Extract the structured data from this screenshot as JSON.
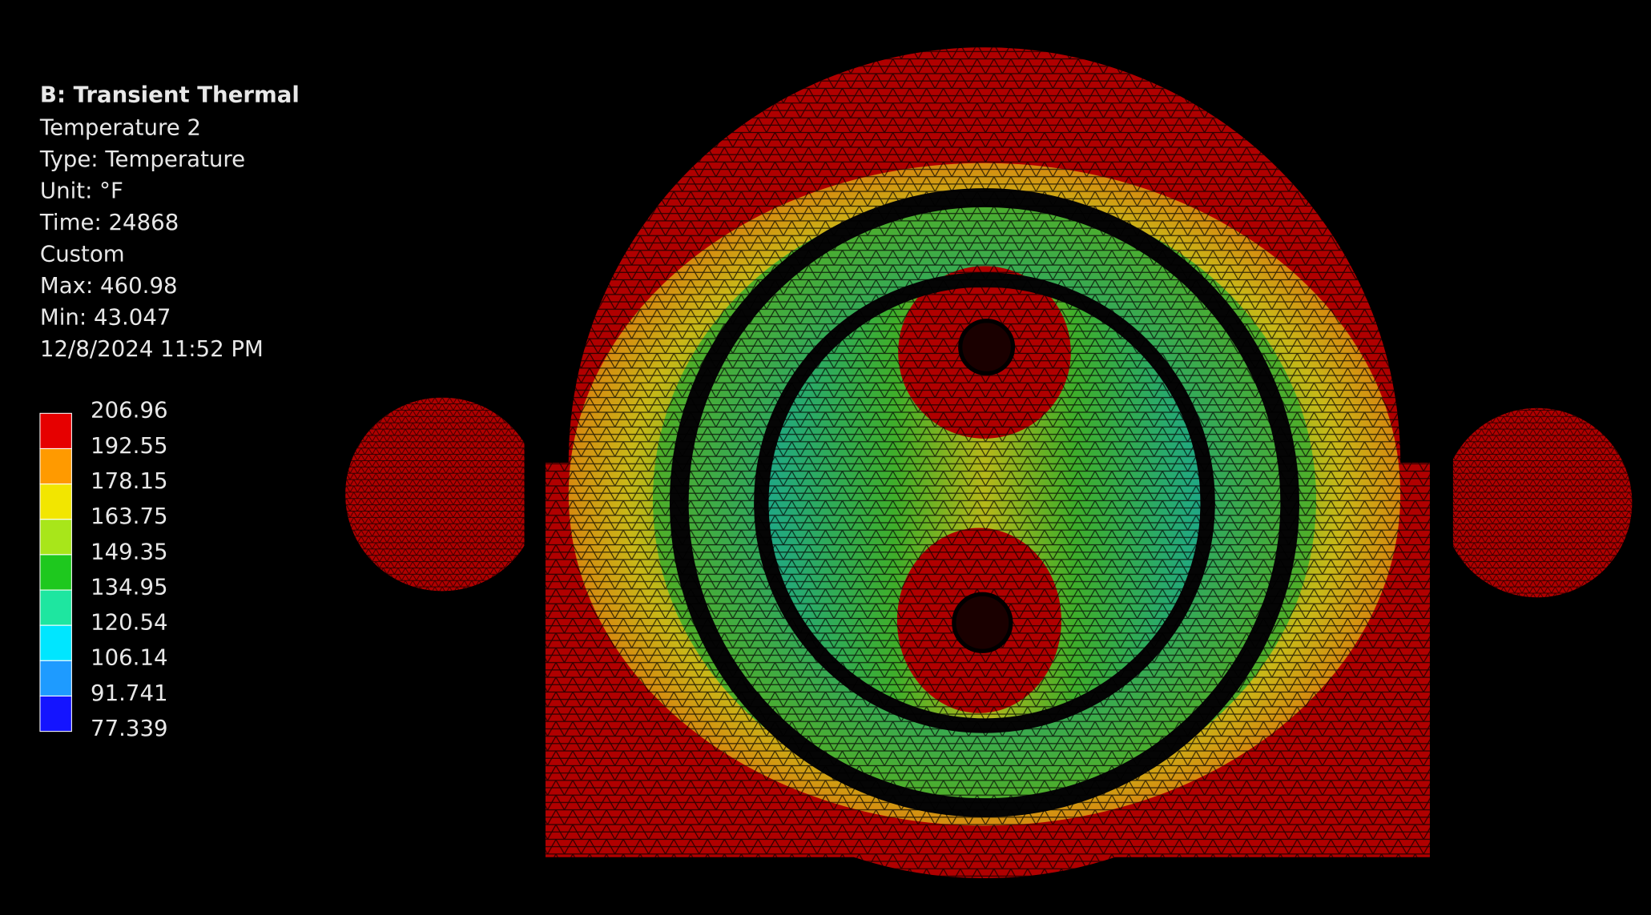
{
  "header": {
    "title": "B: Transient Thermal",
    "lines": [
      "Temperature 2",
      "Type: Temperature",
      "Unit: °F",
      "Time: 24868",
      "Custom",
      "Max: 460.98",
      "Min: 43.047",
      "12/8/2024 11:52 PM"
    ]
  },
  "legend": {
    "labels": [
      "206.96",
      "192.55",
      "178.15",
      "163.75",
      "149.35",
      "134.95",
      "120.54",
      "106.14",
      "91.741",
      "77.339"
    ],
    "colors": [
      "#e60000",
      "#ff9a00",
      "#f2e600",
      "#a8e61a",
      "#1ec81e",
      "#1ee6a0",
      "#00e6ff",
      "#1e9bff",
      "#1414ff"
    ]
  }
}
